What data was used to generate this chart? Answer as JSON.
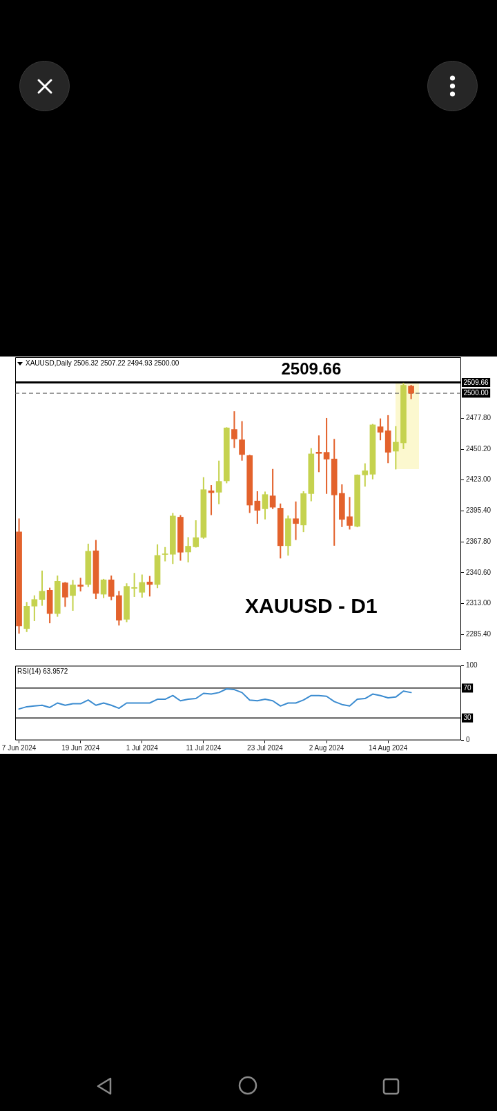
{
  "chart_data": [
    {
      "type": "candlestick",
      "title": "XAUUSD,Daily 2506.32 2507.22 2494.93 2500.00",
      "categories": [
        null,
        null,
        null,
        null,
        null,
        null,
        null,
        null,
        null,
        null,
        null,
        null,
        null,
        null,
        null,
        null,
        null,
        null,
        null,
        null,
        null,
        null,
        null,
        null,
        null,
        null,
        null,
        null,
        null,
        null,
        null,
        null,
        null,
        null,
        null,
        null,
        null,
        null,
        null,
        null,
        null,
        null,
        null,
        null,
        null,
        null,
        null,
        null,
        null,
        null,
        null,
        null,
        null,
        null,
        null,
        null,
        null,
        null
      ],
      "ohlc": [
        [
          2376.8,
          2388.5,
          2286.6,
          2293.2
        ],
        [
          2290.9,
          2314.3,
          2288.0,
          2310.8
        ],
        [
          2310.8,
          2320.2,
          2297.7,
          2316.7
        ],
        [
          2316.7,
          2342.2,
          2311.4,
          2324.1
        ],
        [
          2324.9,
          2327.0,
          2295.8,
          2304.2
        ],
        [
          2304.2,
          2337.8,
          2301.6,
          2332.9
        ],
        [
          2331.5,
          2332.0,
          2310.4,
          2318.8
        ],
        [
          2320.2,
          2333.9,
          2306.9,
          2329.6
        ],
        [
          2329.6,
          2335.8,
          2324.1,
          2328.4
        ],
        [
          2330.0,
          2366.1,
          2328.0,
          2359.6
        ],
        [
          2360.0,
          2369.4,
          2317.3,
          2322.1
        ],
        [
          2321.4,
          2334.8,
          2318.2,
          2334.2
        ],
        [
          2334.2,
          2337.8,
          2316.3,
          2319.4
        ],
        [
          2320.2,
          2324.1,
          2293.8,
          2298.3
        ],
        [
          2299.1,
          2330.9,
          2296.8,
          2328.4
        ],
        [
          2326.6,
          2340.1,
          2319.2,
          2327.4
        ],
        [
          2323.1,
          2338.7,
          2318.6,
          2331.9
        ],
        [
          2332.3,
          2337.4,
          2319.6,
          2330.0
        ],
        [
          2330.0,
          2365.5,
          2327.0,
          2355.9
        ],
        [
          2356.7,
          2363.1,
          2350.8,
          2357.3
        ],
        [
          2356.9,
          2393.4,
          2348.5,
          2390.9
        ],
        [
          2389.9,
          2391.5,
          2351.4,
          2358.7
        ],
        [
          2358.9,
          2371.9,
          2349.9,
          2364.1
        ],
        [
          2363.5,
          2386.9,
          2363.1,
          2371.7
        ],
        [
          2371.9,
          2425.2,
          2370.9,
          2414.3
        ],
        [
          2413.3,
          2418.2,
          2391.9,
          2411.6
        ],
        [
          2412.0,
          2439.9,
          2401.6,
          2421.7
        ],
        [
          2422.1,
          2469.6,
          2420.2,
          2469.2
        ],
        [
          2467.8,
          2483.8,
          2451.6,
          2459.4
        ],
        [
          2458.6,
          2475.0,
          2440.3,
          2445.5
        ],
        [
          2444.6,
          2445.1,
          2393.8,
          2400.6
        ],
        [
          2404.2,
          2412.7,
          2384.2,
          2395.9
        ],
        [
          2397.3,
          2412.4,
          2388.1,
          2410.0
        ],
        [
          2408.8,
          2432.5,
          2397.3,
          2398.7
        ],
        [
          2397.9,
          2401.8,
          2353.4,
          2364.5
        ],
        [
          2364.5,
          2391.1,
          2355.9,
          2388.5
        ],
        [
          2388.5,
          2403.6,
          2369.8,
          2384.2
        ],
        [
          2382.9,
          2412.7,
          2376.8,
          2410.8
        ],
        [
          2410.8,
          2451.0,
          2404.2,
          2446.1
        ],
        [
          2447.7,
          2462.3,
          2430.1,
          2446.5
        ],
        [
          2447.5,
          2477.8,
          2410.8,
          2441.4
        ],
        [
          2441.6,
          2459.2,
          2364.7,
          2409.6
        ],
        [
          2411.0,
          2418.8,
          2381.3,
          2387.9
        ],
        [
          2390.3,
          2407.6,
          2379.1,
          2382.5
        ],
        [
          2381.7,
          2427.6,
          2381.1,
          2427.4
        ],
        [
          2427.4,
          2437.5,
          2417.2,
          2431.1
        ],
        [
          2428.0,
          2472.5,
          2423.7,
          2471.9
        ],
        [
          2470.2,
          2477.4,
          2458.4,
          2465.3
        ],
        [
          2466.6,
          2480.3,
          2438.1,
          2447.5
        ],
        [
          2448.5,
          2470.5,
          2432.5,
          2456.5
        ],
        [
          2455.9,
          2509.0,
          2450.6,
          2507.1
        ],
        [
          2506.32,
          2507.22,
          2494.93,
          2500.0
        ],
        null,
        null,
        null,
        null,
        null,
        null
      ],
      "colors": [
        "#e3622c",
        "#c5d24f",
        "#c5d24f",
        "#c5d24f",
        "#e3622c",
        "#c5d24f",
        "#e3622c",
        "#c5d24f",
        "#e3622c",
        "#c5d24f",
        "#e3622c",
        "#c5d24f",
        "#e3622c",
        "#e3622c",
        "#c5d24f",
        "#c5d24f",
        "#c5d24f",
        "#e3622c",
        "#c5d24f",
        "#c5d24f",
        "#c5d24f",
        "#e3622c",
        "#c5d24f",
        "#c5d24f",
        "#c5d24f",
        "#e3622c",
        "#c5d24f",
        "#c5d24f",
        "#e3622c",
        "#e3622c",
        "#e3622c",
        "#e3622c",
        "#c5d24f",
        "#e3622c",
        "#e3622c",
        "#c5d24f",
        "#e3622c",
        "#c5d24f",
        "#c5d24f",
        "#e3622c",
        "#e3622c",
        "#e3622c",
        "#e3622c",
        "#e3622c",
        "#c5d24f",
        "#c5d24f",
        "#c5d24f",
        "#e3622c",
        "#e3622c",
        "#c5d24f",
        "#c5d24f",
        "#e3622c",
        null,
        null,
        null,
        null,
        null,
        null
      ],
      "ylim": [
        2271.7,
        2532.0
      ],
      "yticks": [
        {
          "value": 2285.4,
          "label": "2285.40"
        },
        {
          "value": 2313.0,
          "label": "2313.00"
        },
        {
          "value": 2340.6,
          "label": "2340.60"
        },
        {
          "value": 2367.8,
          "label": "2367.80"
        },
        {
          "value": 2395.4,
          "label": "2395.40"
        },
        {
          "value": 2423.0,
          "label": "2423.00"
        },
        {
          "value": 2450.2,
          "label": "2450.20"
        },
        {
          "value": 2477.8,
          "label": "2477.80"
        }
      ],
      "ref_lines": [
        {
          "axis": "y",
          "value": 2509.66,
          "label": "2509.66",
          "color": "#000000"
        },
        {
          "axis": "y",
          "value": 2500.0,
          "label": "2500.00",
          "color": "#555555",
          "line_style": "dashed"
        }
      ],
      "annotations": [
        "2509.66",
        "XAUUSD - D1"
      ]
    },
    {
      "type": "line",
      "title": "RSI(14) 63.9572",
      "categories": [
        "7 Jun 2024",
        null,
        null,
        null,
        null,
        null,
        null,
        null,
        "19 Jun 2024",
        null,
        null,
        null,
        null,
        null,
        null,
        null,
        "1 Jul 2024",
        null,
        null,
        null,
        null,
        null,
        null,
        null,
        "11 Jul 2024",
        null,
        null,
        null,
        null,
        null,
        null,
        null,
        "23 Jul 2024",
        null,
        null,
        null,
        null,
        null,
        null,
        null,
        "2 Aug 2024",
        null,
        null,
        null,
        null,
        null,
        null,
        null,
        "14 Aug 2024",
        null,
        null,
        null,
        null,
        null,
        null,
        null,
        null,
        null
      ],
      "values": [
        42,
        45,
        46,
        47,
        44,
        50,
        47,
        49,
        49,
        54,
        47,
        50,
        47,
        43,
        50,
        50,
        50,
        50,
        55,
        55,
        60,
        53,
        55,
        56,
        63,
        62,
        64,
        69,
        68,
        64,
        54,
        53,
        55,
        53,
        46,
        50,
        50,
        54,
        60,
        60,
        59,
        52,
        48,
        46,
        55,
        56,
        62,
        60,
        57,
        58,
        66,
        64,
        null,
        null,
        null,
        null,
        null,
        null
      ],
      "color": "#3a8bd0",
      "ylim": [
        0,
        100
      ],
      "yticks": [
        0,
        100
      ],
      "ref_lines": [
        {
          "axis": "y",
          "value": 70,
          "label": "70",
          "color": "#000000"
        },
        {
          "axis": "y",
          "value": 30,
          "label": "30",
          "color": "#000000"
        }
      ]
    }
  ]
}
